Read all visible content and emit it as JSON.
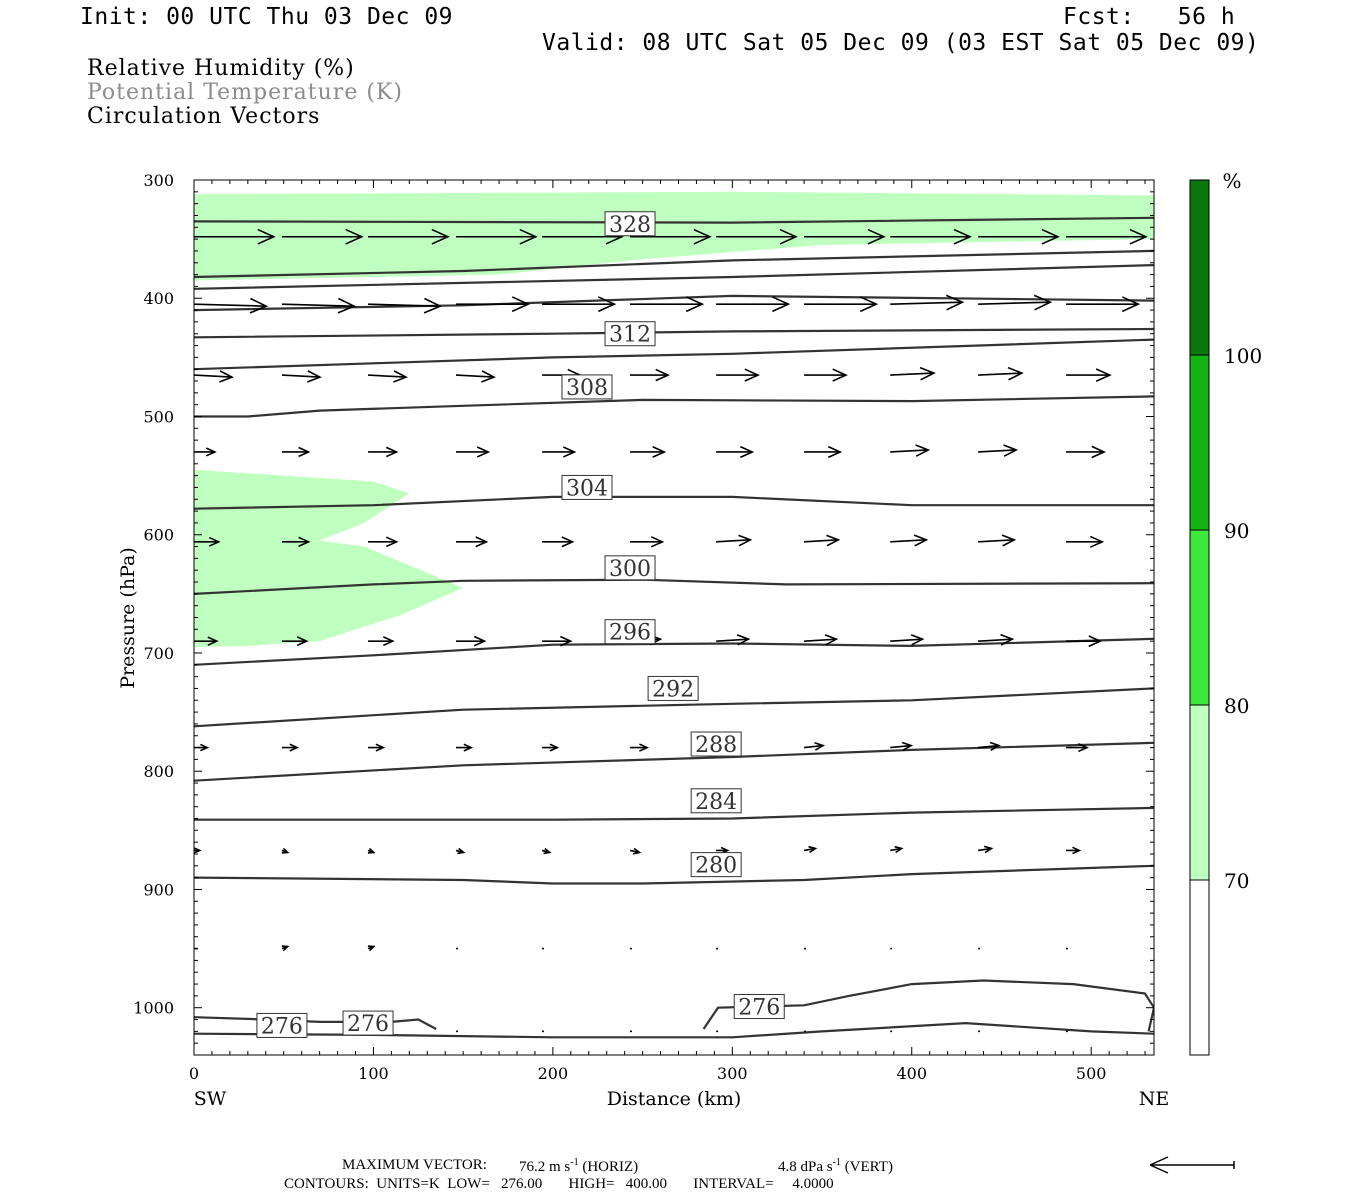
{
  "header": {
    "init": "Init: 00 UTC Thu 03 Dec 09",
    "fcst": "Fcst:   56 h",
    "valid": "Valid: 08 UTC Sat 05 Dec 09 (03 EST Sat 05 Dec 09)"
  },
  "fields": {
    "rh": "Relative Humidity (%)",
    "theta": "Potential Temperature (K)",
    "vectors": "Circulation Vectors"
  },
  "colors": {
    "rh_70_80": "#bfffbf",
    "rh_80_90": "#3ce83c",
    "rh_90_100": "#14b414",
    "rh_100_plus": "#0a780a",
    "theta_gray": "#8c8c8c",
    "contour": "#333333"
  },
  "chart_data": {
    "type": "cross-section",
    "xlabel": "Distance (km)",
    "ylabel": "Pressure (hPa)",
    "xlim": [
      0,
      535
    ],
    "ylim": [
      1040,
      300
    ],
    "x_ticks": [
      0,
      100,
      200,
      300,
      400,
      500
    ],
    "y_ticks": [
      300,
      400,
      500,
      600,
      700,
      800,
      900,
      1000
    ],
    "x_end_labels": {
      "left": "SW",
      "right": "NE"
    },
    "colorbar": {
      "unit": "%",
      "levels": [
        70,
        80,
        90,
        100
      ],
      "colors": [
        "#ffffff",
        "#bfffbf",
        "#3ce83c",
        "#14b414",
        "#0a780a"
      ]
    },
    "contours": [
      {
        "label": "328",
        "points": [
          [
            0,
            335
          ],
          [
            300,
            336
          ],
          [
            535,
            332
          ]
        ]
      },
      {
        "label": "",
        "points": [
          [
            0,
            382
          ],
          [
            150,
            377
          ],
          [
            300,
            368
          ],
          [
            535,
            360
          ]
        ]
      },
      {
        "label": "",
        "points": [
          [
            0,
            392
          ],
          [
            300,
            382
          ],
          [
            535,
            372
          ]
        ]
      },
      {
        "label": "",
        "points": [
          [
            0,
            410
          ],
          [
            150,
            406
          ],
          [
            300,
            398
          ],
          [
            535,
            402
          ]
        ]
      },
      {
        "label": "312",
        "points": [
          [
            0,
            433
          ],
          [
            200,
            430
          ],
          [
            300,
            428
          ],
          [
            535,
            426
          ]
        ]
      },
      {
        "label": "",
        "points": [
          [
            0,
            460
          ],
          [
            100,
            455
          ],
          [
            200,
            450
          ],
          [
            300,
            447
          ],
          [
            535,
            435
          ]
        ]
      },
      {
        "label": "308",
        "points": [
          [
            0,
            500
          ],
          [
            30,
            500
          ],
          [
            70,
            495
          ],
          [
            150,
            491
          ],
          [
            250,
            486
          ],
          [
            400,
            487
          ],
          [
            535,
            483
          ]
        ]
      },
      {
        "label": "304",
        "points": [
          [
            0,
            578
          ],
          [
            100,
            575
          ],
          [
            200,
            568
          ],
          [
            300,
            568
          ],
          [
            400,
            575
          ],
          [
            535,
            575
          ]
        ]
      },
      {
        "label": "300",
        "points": [
          [
            0,
            650
          ],
          [
            100,
            642
          ],
          [
            150,
            639
          ],
          [
            250,
            638
          ],
          [
            330,
            642
          ],
          [
            535,
            641
          ]
        ]
      },
      {
        "label": "296",
        "points": [
          [
            0,
            710
          ],
          [
            100,
            702
          ],
          [
            200,
            693
          ],
          [
            300,
            692
          ],
          [
            400,
            694
          ],
          [
            535,
            688
          ]
        ]
      },
      {
        "label": "292",
        "points": [
          [
            0,
            762
          ],
          [
            150,
            748
          ],
          [
            300,
            743
          ],
          [
            400,
            740
          ],
          [
            535,
            730
          ]
        ]
      },
      {
        "label": "288",
        "points": [
          [
            0,
            808
          ],
          [
            150,
            795
          ],
          [
            300,
            788
          ],
          [
            400,
            782
          ],
          [
            535,
            776
          ]
        ]
      },
      {
        "label": "284",
        "points": [
          [
            0,
            841
          ],
          [
            200,
            841
          ],
          [
            300,
            840
          ],
          [
            400,
            835
          ],
          [
            535,
            831
          ]
        ]
      },
      {
        "label": "280",
        "points": [
          [
            0,
            890
          ],
          [
            150,
            892
          ],
          [
            200,
            895
          ],
          [
            250,
            895
          ],
          [
            340,
            892
          ],
          [
            400,
            887
          ],
          [
            535,
            880
          ]
        ]
      },
      {
        "label": "276",
        "points": [
          [
            0,
            1022
          ],
          [
            100,
            1023
          ],
          [
            200,
            1025
          ],
          [
            300,
            1025
          ],
          [
            350,
            1020
          ],
          [
            430,
            1013
          ],
          [
            500,
            1020
          ],
          [
            535,
            1022
          ]
        ]
      },
      {
        "label": "276",
        "points": [
          [
            0,
            1008
          ],
          [
            40,
            1010
          ],
          [
            70,
            1012
          ],
          [
            110,
            1012
          ],
          [
            125,
            1010
          ],
          [
            135,
            1018
          ]
        ]
      },
      {
        "label": "276",
        "points": [
          [
            284,
            1018
          ],
          [
            292,
            1000
          ],
          [
            340,
            998
          ],
          [
            365,
            990
          ],
          [
            400,
            980
          ],
          [
            440,
            977
          ],
          [
            490,
            980
          ],
          [
            530,
            988
          ],
          [
            535,
            1000
          ],
          [
            532,
            1020
          ]
        ]
      }
    ],
    "contour_labels": [
      {
        "text": "328",
        "x": 243,
        "p": 337
      },
      {
        "text": "312",
        "x": 243,
        "p": 430
      },
      {
        "text": "308",
        "x": 219,
        "p": 475
      },
      {
        "text": "304",
        "x": 219,
        "p": 560
      },
      {
        "text": "300",
        "x": 243,
        "p": 628
      },
      {
        "text": "296",
        "x": 243,
        "p": 682
      },
      {
        "text": "292",
        "x": 267,
        "p": 730
      },
      {
        "text": "288",
        "x": 291,
        "p": 777
      },
      {
        "text": "284",
        "x": 291,
        "p": 825
      },
      {
        "text": "280",
        "x": 291,
        "p": 879
      },
      {
        "text": "276",
        "x": 49,
        "p": 1015
      },
      {
        "text": "276",
        "x": 97,
        "p": 1013
      },
      {
        "text": "276",
        "x": 315,
        "p": 999
      }
    ],
    "rh_regions": [
      {
        "level": "70-80",
        "points": [
          [
            0,
            312
          ],
          [
            300,
            310
          ],
          [
            535,
            313
          ],
          [
            535,
            350
          ],
          [
            350,
            355
          ],
          [
            250,
            367
          ],
          [
            170,
            380
          ],
          [
            0,
            385
          ]
        ]
      },
      {
        "level": "70-80",
        "points": [
          [
            0,
            545
          ],
          [
            100,
            555
          ],
          [
            120,
            565
          ],
          [
            95,
            590
          ],
          [
            70,
            605
          ],
          [
            95,
            610
          ],
          [
            150,
            645
          ],
          [
            115,
            668
          ],
          [
            70,
            690
          ],
          [
            30,
            694
          ],
          [
            0,
            695
          ]
        ]
      }
    ],
    "vector_rows": [
      {
        "p": 348,
        "x": [
          0,
          49,
          97,
          146,
          194,
          243,
          291,
          340,
          388,
          437,
          486,
          535
        ],
        "u": [
          42,
          42,
          42,
          42,
          42,
          42,
          42,
          42,
          42,
          42,
          42,
          42
        ],
        "w": [
          0,
          0,
          0,
          0,
          0,
          0,
          0,
          0,
          0,
          0,
          0,
          0
        ]
      },
      {
        "p": 405,
        "x": [
          0,
          49,
          97,
          146,
          194,
          243,
          291,
          340,
          388,
          437,
          486
        ],
        "u": [
          38,
          38,
          38,
          38,
          38,
          38,
          38,
          38,
          38,
          38,
          38
        ],
        "w": [
          1,
          1,
          1,
          0,
          0,
          0,
          0,
          0,
          -1,
          -1,
          0
        ]
      },
      {
        "p": 465,
        "x": [
          0,
          49,
          97,
          146,
          194,
          243,
          291,
          340,
          388,
          437,
          486
        ],
        "u": [
          20,
          20,
          20,
          20,
          20,
          20,
          22,
          22,
          23,
          23,
          23
        ],
        "w": [
          1,
          1,
          1,
          1,
          0,
          0,
          0,
          0,
          -1,
          -1,
          0
        ]
      },
      {
        "p": 530,
        "x": [
          0,
          49,
          97,
          146,
          194,
          243,
          291,
          340,
          388,
          437,
          486
        ],
        "u": [
          11,
          14,
          15,
          17,
          17,
          18,
          19,
          19,
          20,
          20,
          20
        ],
        "w": [
          0,
          0,
          0,
          0,
          0,
          0,
          0,
          0,
          -1,
          -1,
          0
        ]
      },
      {
        "p": 606,
        "x": [
          0,
          49,
          97,
          146,
          194,
          243,
          291,
          340,
          388,
          437,
          486
        ],
        "u": [
          13,
          14,
          15,
          16,
          16,
          17,
          18,
          18,
          19,
          19,
          19
        ],
        "w": [
          0,
          0,
          0,
          0,
          0,
          0,
          -1,
          -1,
          -1,
          -1,
          0
        ]
      },
      {
        "p": 690,
        "x": [
          0,
          49,
          97,
          146,
          194,
          243,
          291,
          340,
          388,
          437,
          486
        ],
        "u": [
          12,
          13,
          13,
          15,
          15,
          16,
          17,
          17,
          17,
          18,
          18
        ],
        "w": [
          0,
          0,
          0,
          0,
          0,
          -1,
          -1,
          -1,
          -1,
          -1,
          0
        ]
      },
      {
        "p": 780,
        "x": [
          0,
          49,
          97,
          146,
          194,
          243,
          291,
          340,
          388,
          437,
          486
        ],
        "u": [
          7,
          8,
          8,
          8,
          8,
          9,
          10,
          10,
          11,
          11,
          11
        ],
        "w": [
          0,
          0,
          0,
          0,
          0,
          0,
          -1,
          -1,
          -1,
          -1,
          0
        ]
      },
      {
        "p": 867,
        "x": [
          0,
          49,
          97,
          146,
          194,
          243,
          291,
          340,
          388,
          437,
          486
        ],
        "u": [
          3,
          3,
          3,
          4,
          4,
          5,
          6,
          6,
          6,
          7,
          7
        ],
        "w": [
          0,
          1,
          1,
          1,
          1,
          1,
          0,
          -1,
          -1,
          -1,
          0
        ]
      },
      {
        "p": 950,
        "x": [
          0,
          49,
          97,
          146,
          194,
          243,
          291,
          340,
          388,
          437,
          486
        ],
        "u": [
          2,
          3,
          3,
          1,
          1,
          1,
          1,
          1,
          1,
          1,
          1
        ],
        "w": [
          0,
          -1,
          -1,
          0,
          0,
          0,
          0,
          0,
          0,
          0,
          0
        ]
      },
      {
        "p": 1020,
        "x": [
          146,
          194,
          243,
          291,
          340,
          388,
          437,
          486
        ],
        "u": [
          1,
          1,
          1,
          1,
          1,
          1,
          1,
          1
        ],
        "w": [
          0,
          0,
          0,
          0,
          0,
          0,
          0,
          0
        ]
      }
    ]
  },
  "footer": {
    "maxvec_label": "MAXIMUM VECTOR:",
    "maxvec_horiz": "76.2 m s",
    "horiz_tag": "(HORIZ)",
    "maxvec_vert": "4.8 dPa s",
    "vert_tag": "(VERT)",
    "exp": "-1",
    "contours": "CONTOURS:  UNITS=K  LOW=   276.00       HIGH=   400.00       INTERVAL=     4.0000"
  }
}
